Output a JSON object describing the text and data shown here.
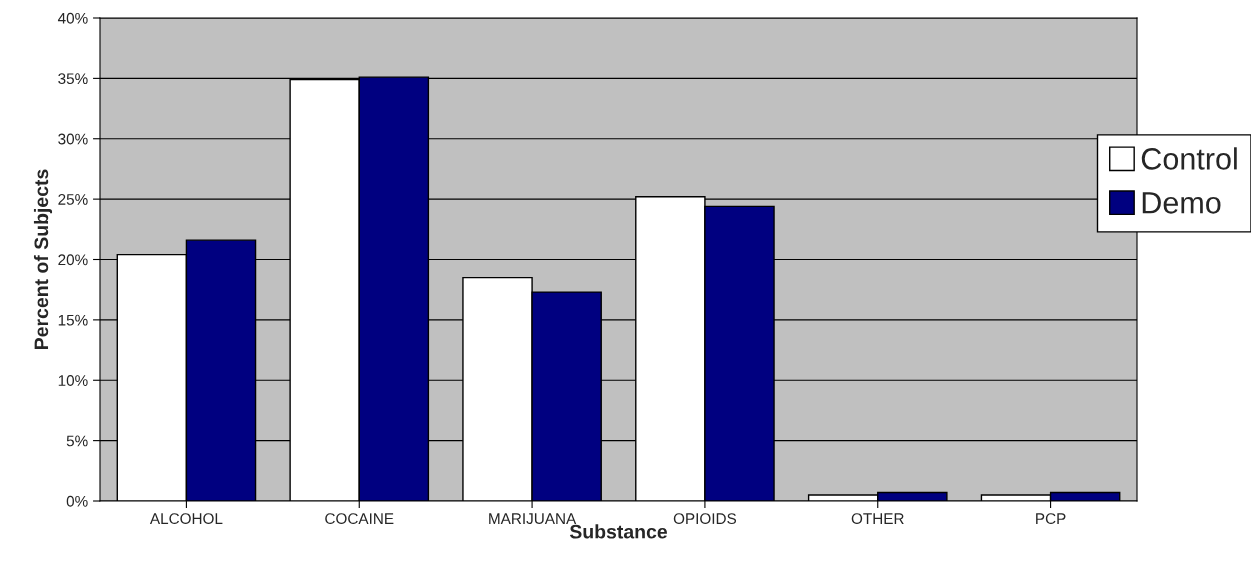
{
  "chart_data": {
    "type": "bar",
    "xlabel": "Substance",
    "ylabel": "Percent of Subjects",
    "categories": [
      "ALCOHOL",
      "COCAINE",
      "MARIJUANA",
      "OPIOIDS",
      "OTHER",
      "PCP"
    ],
    "series": [
      {
        "name": "Control",
        "color": "#ffffff",
        "values": [
          20.4,
          34.9,
          18.5,
          25.2,
          0.5,
          0.5
        ]
      },
      {
        "name": "Demo",
        "color": "#000080",
        "values": [
          21.6,
          35.1,
          17.3,
          24.4,
          0.7,
          0.7
        ]
      }
    ],
    "ylim": [
      0,
      40
    ],
    "yticks": [
      {
        "value": 0,
        "label": "0%"
      },
      {
        "value": 5,
        "label": "5%"
      },
      {
        "value": 10,
        "label": "10%"
      },
      {
        "value": 15,
        "label": "15%"
      },
      {
        "value": 20,
        "label": "20%"
      },
      {
        "value": 25,
        "label": "25%"
      },
      {
        "value": 30,
        "label": "30%"
      },
      {
        "value": 35,
        "label": "35%"
      },
      {
        "value": 40,
        "label": "40%"
      }
    ],
    "grid": "y",
    "legend": "top right"
  }
}
